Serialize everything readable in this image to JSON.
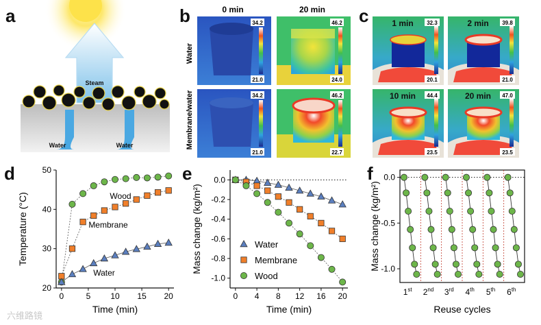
{
  "panels": {
    "a": {
      "label": "a",
      "steam": "Steam",
      "water_left": "Water",
      "water_right": "Water"
    },
    "b": {
      "label": "b",
      "time0": "0 min",
      "time20": "20 min",
      "row_water": "Water",
      "row_membrane": "Membrane/water",
      "scales": [
        {
          "max": "34.2",
          "min": "21.0"
        },
        {
          "max": "46.2",
          "min": "24.0"
        },
        {
          "max": "34.2",
          "min": "21.0"
        },
        {
          "max": "46.2",
          "min": "22.7"
        }
      ]
    },
    "c": {
      "label": "c",
      "images": [
        {
          "time": "1 min",
          "max": "32.3",
          "min": "20.1"
        },
        {
          "time": "2 min",
          "max": "39.8",
          "min": "21.0"
        },
        {
          "time": "10 min",
          "max": "44.4",
          "min": "23.5"
        },
        {
          "time": "20 min",
          "max": "47.0",
          "min": "23.5"
        }
      ]
    },
    "d": {
      "label": "d"
    },
    "e": {
      "label": "e"
    },
    "f": {
      "label": "f"
    }
  },
  "watermark": "六维路镜",
  "colors": {
    "water": "#5b7fbf",
    "membrane": "#f07f2a",
    "wood": "#6db64a",
    "accent_red": "#c0392b"
  },
  "chart_data": [
    {
      "id": "d",
      "type": "scatter",
      "xlabel": "Time (min)",
      "ylabel": "Temperature (°C)",
      "xlim": [
        -1,
        21
      ],
      "ylim": [
        20,
        50
      ],
      "xticks": [
        "0",
        "5",
        "10",
        "15",
        "20"
      ],
      "yticks": [
        "20",
        "30",
        "40",
        "50"
      ],
      "series": [
        {
          "name": "Wood",
          "label": "Wood",
          "marker": "circle",
          "color": "#6db64a",
          "x": [
            0,
            2,
            4,
            6,
            8,
            10,
            12,
            14,
            16,
            18,
            20
          ],
          "y": [
            21.5,
            41.3,
            44.0,
            46.0,
            47.0,
            47.6,
            47.8,
            48.1,
            48.0,
            48.2,
            48.5
          ]
        },
        {
          "name": "Membrane",
          "label": "Membrane",
          "marker": "square",
          "color": "#f07f2a",
          "x": [
            0,
            2,
            4,
            6,
            8,
            10,
            12,
            14,
            16,
            18,
            20
          ],
          "y": [
            23.0,
            30.0,
            36.8,
            38.4,
            39.7,
            40.6,
            41.5,
            42.5,
            43.5,
            44.3,
            44.8
          ]
        },
        {
          "name": "Water",
          "label": "Water",
          "marker": "triangle",
          "color": "#5b7fbf",
          "x": [
            0,
            2,
            4,
            6,
            8,
            10,
            12,
            14,
            16,
            18,
            20
          ],
          "y": [
            21.5,
            23.5,
            24.8,
            26.3,
            27.5,
            28.3,
            29.2,
            29.9,
            30.5,
            31.2,
            31.5
          ]
        }
      ]
    },
    {
      "id": "e",
      "type": "scatter",
      "xlabel": "Time (min)",
      "ylabel": "Mass change (kg/m²)",
      "xlim": [
        -1,
        21
      ],
      "ylim": [
        -1.1,
        0.1
      ],
      "xticks": [
        "0",
        "4",
        "8",
        "12",
        "16",
        "20"
      ],
      "yticks": [
        "0.0",
        "-0.2",
        "-0.4",
        "-0.6",
        "-0.8",
        "-1.0"
      ],
      "legend": [
        "Water",
        "Membrane",
        "Wood"
      ],
      "series": [
        {
          "name": "Water",
          "marker": "triangle",
          "color": "#5b7fbf",
          "x": [
            0,
            2,
            4,
            6,
            8,
            10,
            12,
            14,
            16,
            18,
            20
          ],
          "y": [
            0.0,
            0.0,
            -0.01,
            -0.03,
            -0.05,
            -0.08,
            -0.11,
            -0.14,
            -0.17,
            -0.21,
            -0.25
          ]
        },
        {
          "name": "Membrane",
          "marker": "square",
          "color": "#f07f2a",
          "x": [
            0,
            2,
            4,
            6,
            8,
            10,
            12,
            14,
            16,
            18,
            20
          ],
          "y": [
            0.0,
            -0.02,
            -0.06,
            -0.11,
            -0.17,
            -0.23,
            -0.3,
            -0.37,
            -0.44,
            -0.52,
            -0.6
          ]
        },
        {
          "name": "Wood",
          "marker": "circle",
          "color": "#6db64a",
          "x": [
            0,
            2,
            4,
            6,
            8,
            10,
            12,
            14,
            16,
            18,
            20
          ],
          "y": [
            0.0,
            -0.06,
            -0.14,
            -0.23,
            -0.33,
            -0.44,
            -0.55,
            -0.67,
            -0.79,
            -0.91,
            -1.04
          ]
        }
      ]
    },
    {
      "id": "f",
      "type": "scatter",
      "xlabel": "Reuse cycles",
      "ylabel": "Mass change (kg/m²)",
      "ylim": [
        -1.15,
        0.08
      ],
      "yticks": [
        "0.0",
        "-0.5",
        "-1.0"
      ],
      "cycles": [
        {
          "num": "1",
          "sup": "st"
        },
        {
          "num": "2",
          "sup": "nd"
        },
        {
          "num": "3",
          "sup": "rd"
        },
        {
          "num": "4",
          "sup": "th"
        },
        {
          "num": "5",
          "sup": "th"
        },
        {
          "num": "6",
          "sup": "th"
        }
      ],
      "cycle_values": [
        0.0,
        -0.17,
        -0.37,
        -0.57,
        -0.77,
        -0.95,
        -1.06
      ],
      "color": "#6db64a"
    }
  ]
}
